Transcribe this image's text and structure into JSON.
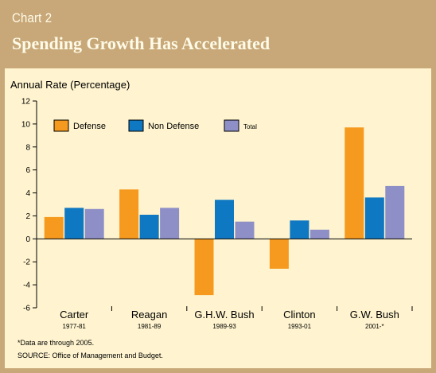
{
  "header": {
    "chart_number": "Chart 2",
    "title": "Spending Growth Has Accelerated"
  },
  "footnotes": {
    "note": "*Data are through 2005.",
    "source": "SOURCE: Office of Management and Budget."
  },
  "colors": {
    "Defense": "#f59a1e",
    "Non Defense": "#0f78c2",
    "Total": "#8f8fc8",
    "header_bg": "#c8a878",
    "panel_bg": "#fff4cf"
  },
  "chart_data": {
    "type": "bar",
    "title": "Spending Growth Has Accelerated",
    "ylabel": "Annual Rate (Percentage)",
    "xlabel": "",
    "ylim": [
      -6,
      12
    ],
    "yticks": [
      -6,
      -4,
      -2,
      0,
      2,
      4,
      6,
      8,
      10,
      12
    ],
    "grid": false,
    "legend_position": "top",
    "categories": [
      "Carter",
      "Reagan",
      "G.H.W. Bush",
      "Clinton",
      "G.W. Bush"
    ],
    "category_sublabels": [
      "1977-81",
      "1981-89",
      "1989-93",
      "1993-01",
      "2001-*"
    ],
    "series": [
      {
        "name": "Defense",
        "values": [
          1.9,
          4.3,
          -4.9,
          -2.6,
          9.7
        ]
      },
      {
        "name": "Non Defense",
        "values": [
          2.7,
          2.1,
          3.4,
          1.6,
          3.6
        ]
      },
      {
        "name": "Total",
        "values": [
          2.6,
          2.7,
          1.5,
          0.8,
          4.6
        ]
      }
    ]
  }
}
